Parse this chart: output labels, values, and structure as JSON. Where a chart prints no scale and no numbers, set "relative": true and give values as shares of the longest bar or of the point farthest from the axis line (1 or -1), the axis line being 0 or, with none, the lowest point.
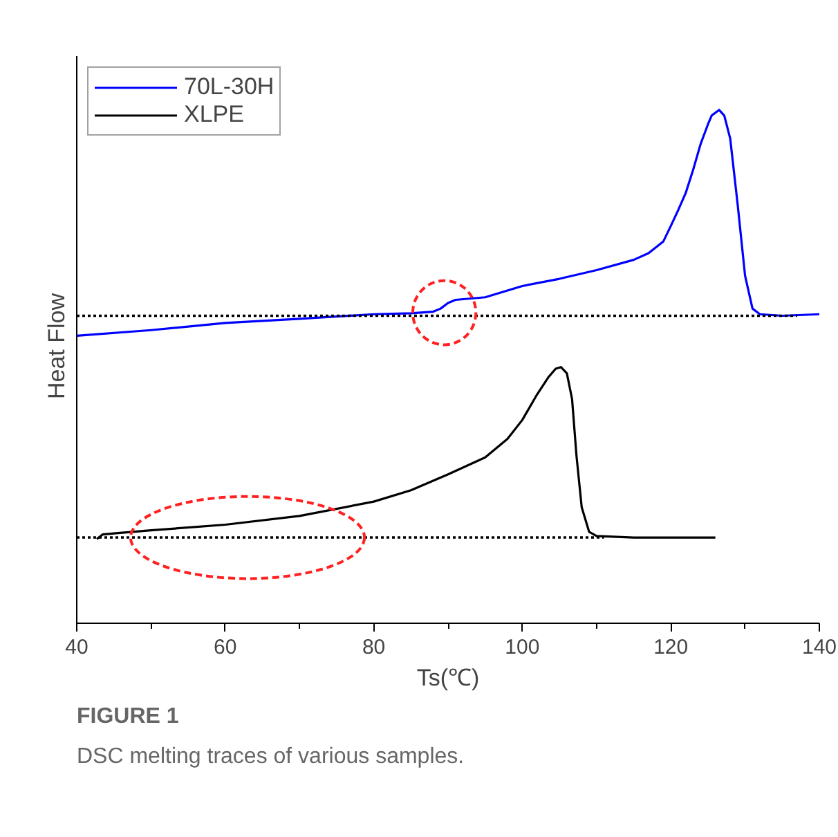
{
  "chart_data": {
    "type": "line",
    "relative": true,
    "xlabel": "Ts(℃)",
    "ylabel": "Heat   Flow",
    "xlim": [
      40,
      140
    ],
    "xticks": [
      40,
      60,
      80,
      100,
      120,
      140
    ],
    "legend": "top left",
    "grid": false,
    "line_style": "solid",
    "annotations": [
      "FIGURE 1",
      "DSC melting traces of various samples."
    ],
    "series": [
      {
        "name": "70L-30H",
        "color": "#0000ff",
        "x": [
          40,
          50,
          60,
          70,
          80,
          85,
          88,
          89,
          90,
          91,
          95,
          100,
          105,
          110,
          115,
          117,
          119,
          120,
          121,
          122,
          123,
          124,
          125,
          125.5,
          126.5,
          127.2,
          128,
          129,
          130,
          131,
          132,
          135,
          140
        ],
        "values": [
          0.56,
          0.571,
          0.585,
          0.593,
          0.602,
          0.604,
          0.607,
          0.613,
          0.624,
          0.63,
          0.635,
          0.657,
          0.671,
          0.688,
          0.708,
          0.721,
          0.744,
          0.774,
          0.805,
          0.838,
          0.883,
          0.933,
          0.972,
          0.989,
          1.0,
          0.989,
          0.944,
          0.816,
          0.677,
          0.613,
          0.602,
          0.599,
          0.602
        ]
      },
      {
        "name": "XLPE",
        "color": "#000000",
        "x": [
          42.7,
          43.5,
          45,
          50,
          60,
          70,
          80,
          85,
          90,
          95,
          98,
          100,
          102,
          103.5,
          104.5,
          105.2,
          106,
          106.7,
          107.3,
          108,
          109,
          110,
          115,
          126
        ],
        "values": [
          0.164,
          0.173,
          0.175,
          0.181,
          0.192,
          0.209,
          0.237,
          0.259,
          0.29,
          0.323,
          0.359,
          0.396,
          0.446,
          0.479,
          0.496,
          0.499,
          0.487,
          0.437,
          0.326,
          0.226,
          0.178,
          0.17,
          0.167,
          0.167
        ]
      },
      {
        "color": "#000000",
        "line_style": "dotted",
        "x": [
          40,
          137
        ],
        "values": [
          0.599,
          0.599
        ]
      },
      {
        "color": "#000000",
        "line_style": "dotted",
        "x": [
          40,
          111
        ],
        "values": [
          0.167,
          0.167
        ]
      }
    ]
  }
}
